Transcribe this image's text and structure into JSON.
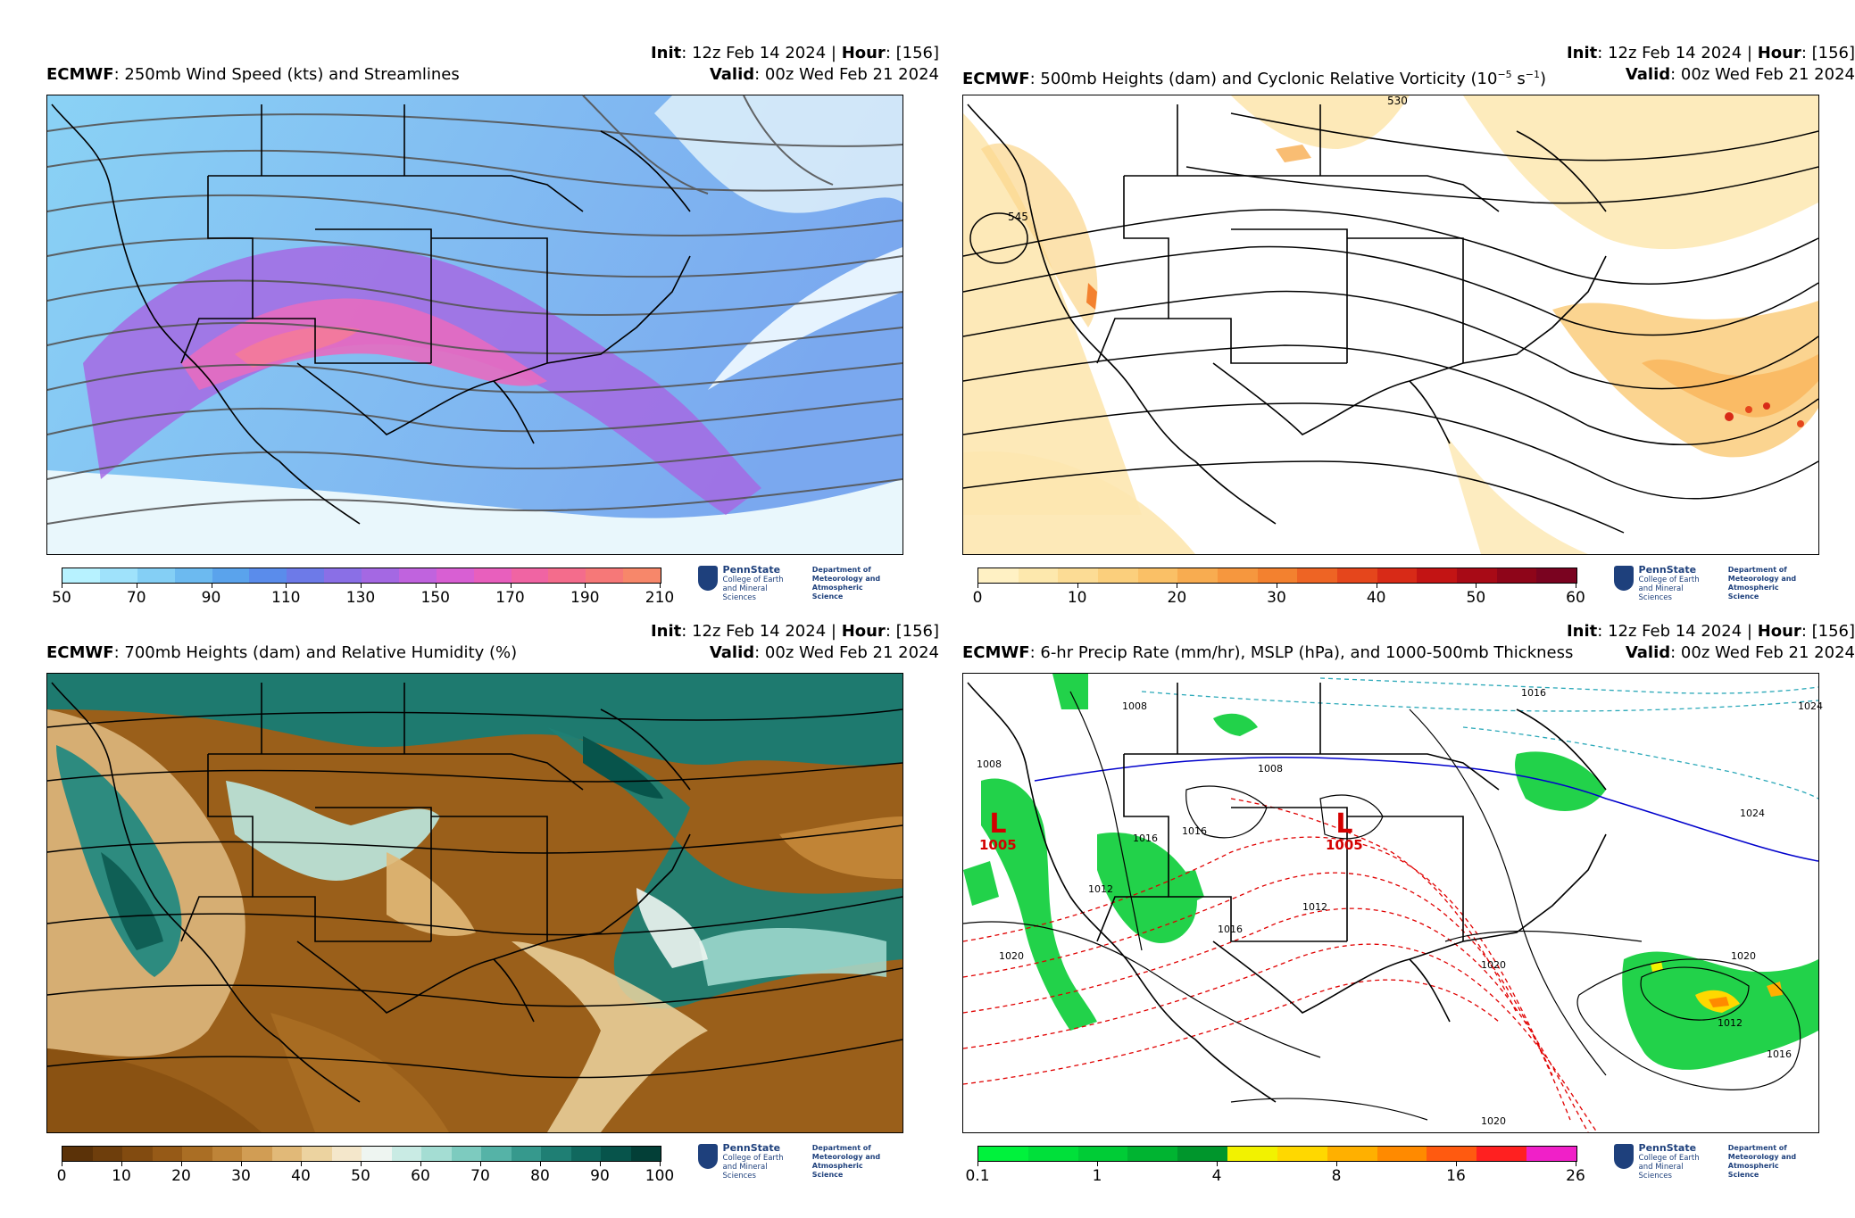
{
  "panels": [
    {
      "id": "p1",
      "model": "ECMWF",
      "title": ": 250mb Wind Speed (kts) and Streamlines",
      "init_label": "Init",
      "init_value": ": 12z Feb 14 2024 | ",
      "hour_label": "Hour",
      "hour_value": ": [156]",
      "valid_label": "Valid",
      "valid_value": ": 00z Wed Feb 21 2024",
      "colorbar": {
        "ticks": [
          "50",
          "70",
          "90",
          "110",
          "130",
          "150",
          "170",
          "190",
          "210"
        ],
        "colors": [
          "#b7f2ff",
          "#9fe2fb",
          "#84cff5",
          "#6cbaf0",
          "#5aa3ec",
          "#5a8ceb",
          "#6d7ae8",
          "#8a6fe6",
          "#a468e3",
          "#c063de",
          "#d85fd3",
          "#e85fbd",
          "#f064a3",
          "#f46c8c",
          "#f67878",
          "#f7876a"
        ]
      }
    },
    {
      "id": "p2",
      "model": "ECMWF",
      "title": ": 500mb Heights (dam) and Cyclonic Relative Vorticity (10",
      "title_sup": "−5",
      "title_unit": " s",
      "title_sup2": "−1",
      "title_end": ")",
      "init_label": "Init",
      "init_value": ": 12z Feb 14 2024 | ",
      "hour_label": "Hour",
      "hour_value": ": [156]",
      "valid_label": "Valid",
      "valid_value": ": 00z Wed Feb 21 2024",
      "contour_labels": [
        "545",
        "530"
      ],
      "colorbar": {
        "ticks": [
          "0",
          "10",
          "20",
          "30",
          "40",
          "50",
          "60"
        ],
        "colors": [
          "#fff1c4",
          "#fde8ad",
          "#fcdc95",
          "#fbcf7c",
          "#fac066",
          "#f8ac50",
          "#f6973e",
          "#f3812f",
          "#ee6424",
          "#e5461c",
          "#d82a17",
          "#c31414",
          "#a80a16",
          "#8e0519",
          "#7a0320"
        ]
      }
    },
    {
      "id": "p3",
      "model": "ECMWF",
      "title": ": 700mb Heights (dam) and Relative Humidity (%)",
      "init_label": "Init",
      "init_value": ": 12z Feb 14 2024 | ",
      "hour_label": "Hour",
      "hour_value": ": [156]",
      "valid_label": "Valid",
      "valid_value": ": 00z Wed Feb 21 2024",
      "colorbar": {
        "ticks": [
          "0",
          "10",
          "20",
          "30",
          "40",
          "50",
          "60",
          "70",
          "80",
          "90",
          "100"
        ],
        "colors": [
          "#5b3208",
          "#6e3e0c",
          "#824b10",
          "#965a17",
          "#aa6e24",
          "#be8438",
          "#d19d54",
          "#e1b978",
          "#ecd3a0",
          "#f4e7cb",
          "#eef5f1",
          "#c9ebe4",
          "#a4ddd3",
          "#7dcbbf",
          "#55b3a7",
          "#36998d",
          "#1f7f74",
          "#10685e",
          "#07544b",
          "#033f37"
        ]
      }
    },
    {
      "id": "p4",
      "model": "ECMWF",
      "title": ": 6-hr Precip Rate (mm/hr), MSLP (hPa), and 1000-500mb Thickness",
      "init_label": "Init",
      "init_value": ": 12z Feb 14 2024 | ",
      "hour_label": "Hour",
      "hour_value": ": [156]",
      "valid_label": "Valid",
      "valid_value": ": 00z Wed Feb 21 2024",
      "lows": [
        {
          "letter": "L",
          "value": "1005"
        },
        {
          "letter": "L",
          "value": "1005"
        }
      ],
      "contour_labels": [
        "1008",
        "1008",
        "1016",
        "1008",
        "1016",
        "1012",
        "1016",
        "1012",
        "1020",
        "1020",
        "1020",
        "1016",
        "1012",
        "1016",
        "1024",
        "1020",
        "1024"
      ],
      "colorbar": {
        "ticks": [
          "0.1",
          "1",
          "4",
          "8",
          "16",
          "26"
        ],
        "colors": [
          "#00f23c",
          "#00e03a",
          "#00cc36",
          "#00b431",
          "#00962c",
          "#f2f200",
          "#ffd800",
          "#ffb000",
          "#ff8a00",
          "#ff5a10",
          "#ff2020",
          "#f020c8"
        ]
      }
    }
  ],
  "logo": {
    "name": "PennState",
    "line1": "College of Earth",
    "line2": "and Mineral Sciences",
    "dept1": "Department of",
    "dept2": "Meteorology and",
    "dept3": "Atmospheric Science"
  },
  "colors": {
    "streamline": "#555555",
    "height_contour": "#000000",
    "low_label": "#d40000",
    "thickness_warm": "#e00000",
    "thickness_cold": "#2aa8b8",
    "thickness_zero": "#0000cc",
    "penn_blue": "#1e407c"
  }
}
